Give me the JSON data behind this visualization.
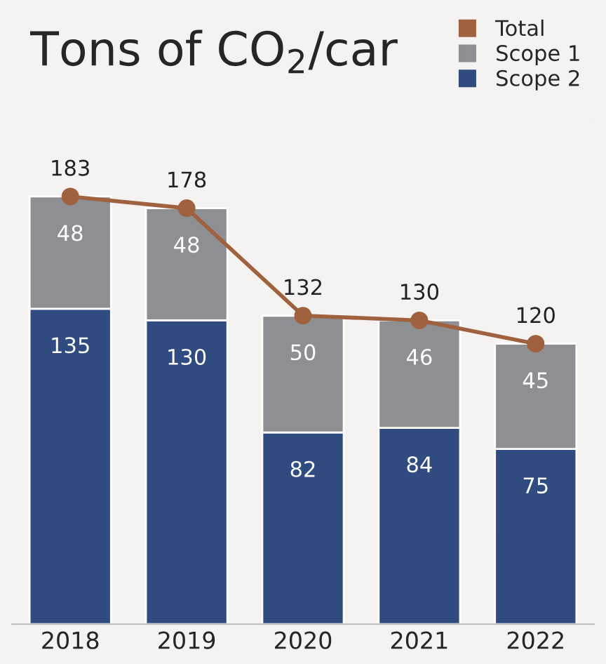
{
  "chart_data": {
    "type": "bar",
    "title": "Tons of CO$_{2}$/car",
    "categories": [
      "2018",
      "2019",
      "2020",
      "2021",
      "2022"
    ],
    "stacked": true,
    "data_labels": true,
    "legend": "top right",
    "grid": false,
    "series": [
      {
        "name": "Scope 2",
        "color": "#2f4b7f",
        "values": [
          135,
          130,
          82,
          84,
          75
        ]
      },
      {
        "name": "Scope 1",
        "color": "#8e8f93",
        "values": [
          48,
          48,
          50,
          46,
          45
        ]
      },
      {
        "name": "Total",
        "color": "#a0613f",
        "type": "line",
        "marker": "circle",
        "values": [
          183,
          178,
          132,
          130,
          120
        ]
      }
    ]
  }
}
